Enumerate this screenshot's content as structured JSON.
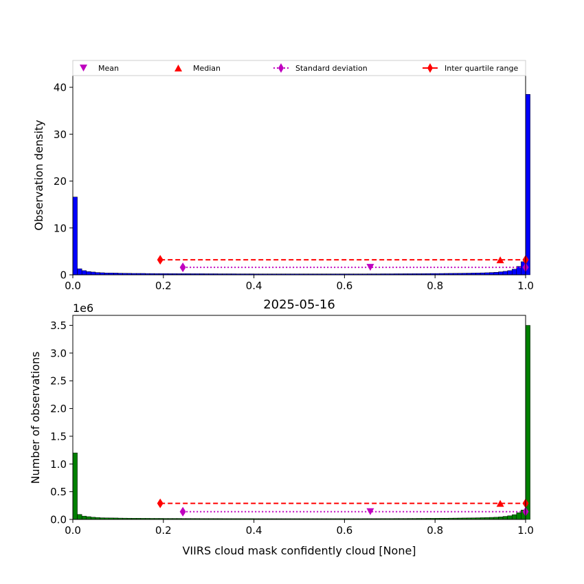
{
  "chart_data": [
    {
      "type": "bar",
      "title": "",
      "xlabel": "",
      "ylabel": "Observation density",
      "xlim": [
        0,
        1
      ],
      "ylim": [
        0,
        42.5
      ],
      "xticks": [
        "0.0",
        "0.2",
        "0.4",
        "0.6",
        "0.8",
        "1.0"
      ],
      "xtick_values": [
        0,
        0.2,
        0.4,
        0.6,
        0.8,
        1.0
      ],
      "yticks": [
        "0",
        "10",
        "20",
        "30",
        "40"
      ],
      "ytick_values": [
        0,
        10,
        20,
        30,
        40
      ],
      "bar_color": "#0000ff",
      "bin_width": 0.01,
      "values": [
        16.6,
        1.3,
        0.9,
        0.7,
        0.6,
        0.5,
        0.45,
        0.4,
        0.4,
        0.38,
        0.35,
        0.33,
        0.32,
        0.3,
        0.3,
        0.3,
        0.28,
        0.28,
        0.27,
        0.27,
        0.27,
        0.26,
        0.26,
        0.25,
        0.25,
        0.25,
        0.24,
        0.24,
        0.24,
        0.23,
        0.23,
        0.23,
        0.22,
        0.22,
        0.22,
        0.22,
        0.21,
        0.21,
        0.21,
        0.21,
        0.2,
        0.2,
        0.2,
        0.2,
        0.2,
        0.2,
        0.2,
        0.2,
        0.2,
        0.2,
        0.2,
        0.2,
        0.2,
        0.2,
        0.2,
        0.2,
        0.2,
        0.2,
        0.2,
        0.2,
        0.2,
        0.2,
        0.2,
        0.2,
        0.2,
        0.21,
        0.21,
        0.21,
        0.22,
        0.22,
        0.22,
        0.23,
        0.23,
        0.24,
        0.24,
        0.25,
        0.25,
        0.26,
        0.27,
        0.28,
        0.28,
        0.29,
        0.3,
        0.31,
        0.32,
        0.33,
        0.35,
        0.36,
        0.38,
        0.4,
        0.42,
        0.45,
        0.5,
        0.55,
        0.65,
        0.75,
        0.9,
        1.2,
        1.8,
        2.8,
        38.5
      ],
      "stats": {
        "mean": {
          "x": 0.657,
          "y": 1.6
        },
        "median": {
          "x": 0.944,
          "y": 3.2
        },
        "std": {
          "x": [
            0.243,
            1.0
          ],
          "y": 1.6
        },
        "iqr": {
          "x": [
            0.193,
            1.0
          ],
          "y": 3.2
        }
      },
      "legend": {
        "placement": "top",
        "entries": [
          {
            "label": "Mean",
            "marker": "triangle-down",
            "color": "#bf00bf"
          },
          {
            "label": "Median",
            "marker": "triangle-up",
            "color": "#ff0000"
          },
          {
            "label": "Standard deviation",
            "marker": "diamond-dotted",
            "color": "#bf00bf"
          },
          {
            "label": "Inter quartile range",
            "marker": "diamond-line",
            "color": "#ff0000"
          }
        ]
      }
    },
    {
      "type": "bar",
      "title": "2025-05-16",
      "xlabel": "VIIRS cloud mask confidently cloud [None]",
      "ylabel": "Number of observations",
      "offset_text": "1e6",
      "xlim": [
        0,
        1
      ],
      "ylim": [
        0,
        3.68
      ],
      "xticks": [
        "0.0",
        "0.2",
        "0.4",
        "0.6",
        "0.8",
        "1.0"
      ],
      "xtick_values": [
        0,
        0.2,
        0.4,
        0.6,
        0.8,
        1.0
      ],
      "yticks": [
        "0.0",
        "0.5",
        "1.0",
        "1.5",
        "2.0",
        "2.5",
        "3.0",
        "3.5"
      ],
      "ytick_values": [
        0,
        0.5,
        1.0,
        1.5,
        2.0,
        2.5,
        3.0,
        3.5
      ],
      "bar_color": "#008000",
      "bin_width": 0.01,
      "values": [
        1.2,
        0.09,
        0.06,
        0.05,
        0.04,
        0.035,
        0.03,
        0.028,
        0.027,
        0.026,
        0.024,
        0.023,
        0.022,
        0.021,
        0.021,
        0.02,
        0.02,
        0.019,
        0.019,
        0.019,
        0.018,
        0.018,
        0.018,
        0.018,
        0.017,
        0.017,
        0.017,
        0.017,
        0.016,
        0.016,
        0.016,
        0.016,
        0.016,
        0.015,
        0.015,
        0.015,
        0.015,
        0.015,
        0.015,
        0.015,
        0.014,
        0.014,
        0.014,
        0.014,
        0.014,
        0.014,
        0.014,
        0.014,
        0.014,
        0.014,
        0.014,
        0.014,
        0.014,
        0.014,
        0.014,
        0.014,
        0.014,
        0.014,
        0.014,
        0.014,
        0.014,
        0.014,
        0.014,
        0.014,
        0.015,
        0.015,
        0.015,
        0.015,
        0.016,
        0.016,
        0.016,
        0.017,
        0.017,
        0.017,
        0.018,
        0.018,
        0.019,
        0.019,
        0.02,
        0.02,
        0.021,
        0.022,
        0.022,
        0.023,
        0.024,
        0.025,
        0.026,
        0.027,
        0.028,
        0.03,
        0.032,
        0.034,
        0.037,
        0.04,
        0.046,
        0.055,
        0.066,
        0.086,
        0.12,
        0.17,
        3.5
      ],
      "stats": {
        "mean": {
          "x": 0.657,
          "y": 0.14
        },
        "median": {
          "x": 0.944,
          "y": 0.29
        },
        "std": {
          "x": [
            0.243,
            1.0
          ],
          "y": 0.14
        },
        "iqr": {
          "x": [
            0.193,
            1.0
          ],
          "y": 0.29
        }
      }
    }
  ]
}
